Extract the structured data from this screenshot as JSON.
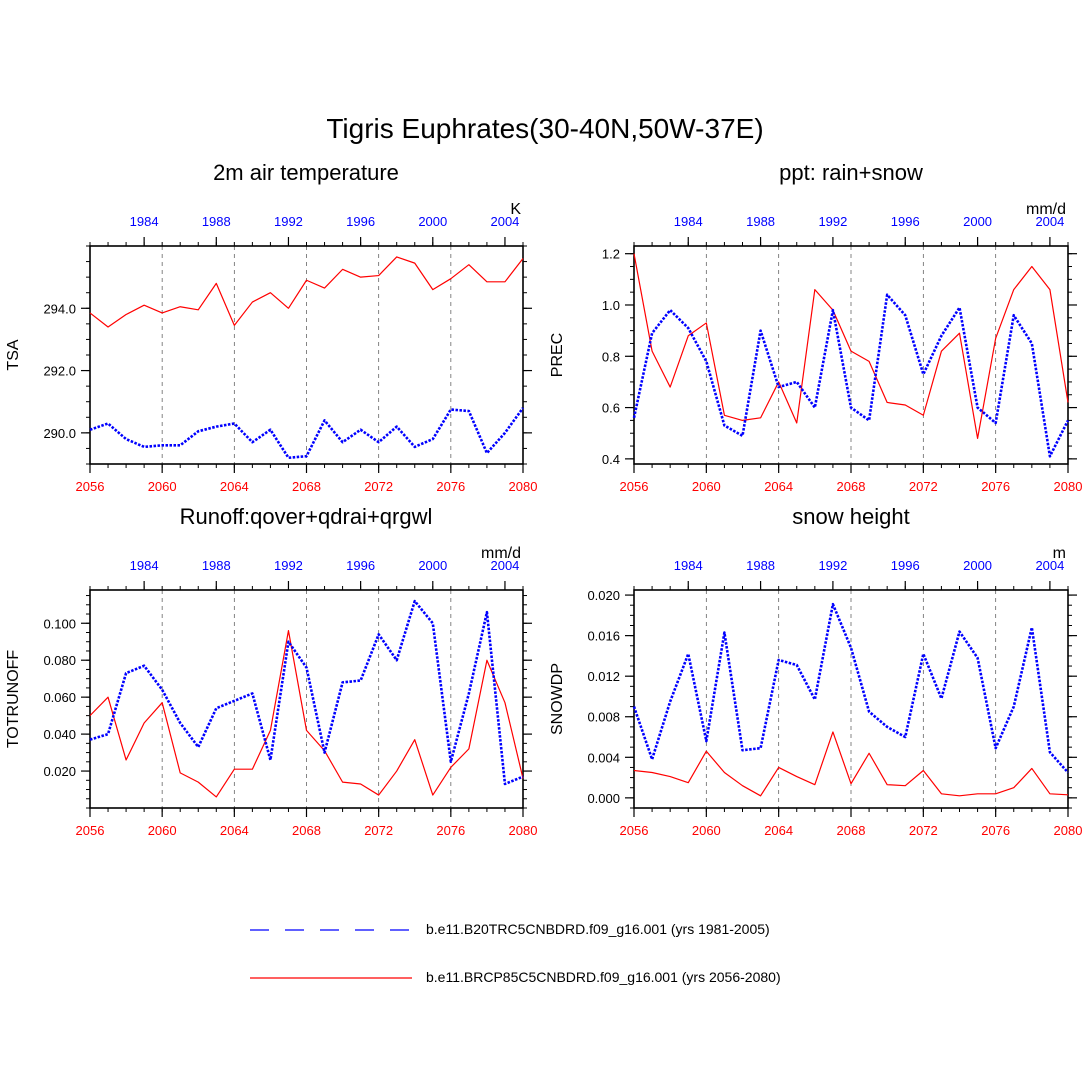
{
  "title": "Tigris Euphrates(30-40N,50W-37E)",
  "legend": [
    {
      "label": "b.e11.B20TRC5CNBDRD.f09_g16.001 (yrs 1981-2005)",
      "color": "#0000ff",
      "style": "dashed"
    },
    {
      "label": "b.e11.BRCP85C5CNBDRD.f09_g16.001 (yrs 2056-2080)",
      "color": "#ff0000",
      "style": "solid"
    }
  ],
  "colors": {
    "future": "#ff0000",
    "historical": "#0000ff",
    "axis": "#000000"
  },
  "chart_data": [
    {
      "type": "line",
      "title": "2m air temperature",
      "ylabel": "TSA",
      "units": "K",
      "ylim": [
        289,
        296.0
      ],
      "yticks": [
        290,
        292,
        294
      ],
      "yticklabels": [
        "290.0",
        "292.0",
        "294.0"
      ],
      "ydecimals": 1,
      "bottom_axis": {
        "range": [
          2056,
          2080
        ],
        "ticks": [
          "2056",
          "2060",
          "2064",
          "2068",
          "2072",
          "2076",
          "2080"
        ],
        "color": "#ff0000"
      },
      "top_axis": {
        "range": [
          1981,
          2005
        ],
        "ticks": [
          "1984",
          "1988",
          "1992",
          "1996",
          "2000",
          "2004"
        ],
        "color": "#0000ff"
      },
      "gridlines_x": [
        2060,
        2064,
        2068,
        2072,
        2076
      ],
      "series": [
        {
          "name": "b.e11.BRCP85C5CNBDRD.f09_g16.001 (yrs 2056-2080)",
          "color": "#ff0000",
          "style": "solid",
          "x": [
            2056,
            2057,
            2058,
            2059,
            2060,
            2061,
            2062,
            2063,
            2064,
            2065,
            2066,
            2067,
            2068,
            2069,
            2070,
            2071,
            2072,
            2073,
            2074,
            2075,
            2076,
            2077,
            2078,
            2079,
            2080
          ],
          "values": [
            293.85,
            293.4,
            293.8,
            294.1,
            293.85,
            294.05,
            293.95,
            294.8,
            293.45,
            294.2,
            294.5,
            294.0,
            294.9,
            294.65,
            295.25,
            295.0,
            295.05,
            295.65,
            295.45,
            294.6,
            294.95,
            295.4,
            294.85,
            294.85,
            295.6
          ]
        },
        {
          "name": "b.e11.B20TRC5CNBDRD.f09_g16.001 (yrs 1981-2005)",
          "color": "#0000ff",
          "style": "dotted",
          "x": [
            2056,
            2057,
            2058,
            2059,
            2060,
            2061,
            2062,
            2063,
            2064,
            2065,
            2066,
            2067,
            2068,
            2069,
            2070,
            2071,
            2072,
            2073,
            2074,
            2075,
            2076,
            2077,
            2078,
            2079,
            2080
          ],
          "values": [
            290.1,
            290.3,
            289.8,
            289.55,
            289.6,
            289.6,
            290.05,
            290.2,
            290.3,
            289.7,
            290.1,
            289.2,
            289.25,
            290.4,
            289.7,
            290.1,
            289.7,
            290.2,
            289.55,
            289.8,
            290.75,
            290.7,
            289.35,
            290.0,
            290.8
          ]
        }
      ]
    },
    {
      "type": "line",
      "title": "ppt: rain+snow",
      "ylabel": "PREC",
      "units": "mm/d",
      "ylim": [
        0.38,
        1.23
      ],
      "yticks": [
        0.4,
        0.6,
        0.8,
        1.0,
        1.2
      ],
      "yticklabels": [
        "0.4",
        "0.6",
        "0.8",
        "1.0",
        "1.2"
      ],
      "ydecimals": 1,
      "bottom_axis": {
        "range": [
          2056,
          2080
        ],
        "ticks": [
          "2056",
          "2060",
          "2064",
          "2068",
          "2072",
          "2076",
          "2080"
        ],
        "color": "#ff0000"
      },
      "top_axis": {
        "range": [
          1981,
          2005
        ],
        "ticks": [
          "1984",
          "1988",
          "1992",
          "1996",
          "2000",
          "2004"
        ],
        "color": "#0000ff"
      },
      "gridlines_x": [
        2060,
        2064,
        2068,
        2072,
        2076
      ],
      "series": [
        {
          "name": "b.e11.BRCP85C5CNBDRD.f09_g16.001 (yrs 2056-2080)",
          "color": "#ff0000",
          "style": "solid",
          "x": [
            2056,
            2057,
            2058,
            2059,
            2060,
            2061,
            2062,
            2063,
            2064,
            2065,
            2066,
            2067,
            2068,
            2069,
            2070,
            2071,
            2072,
            2073,
            2074,
            2075,
            2076,
            2077,
            2078,
            2079,
            2080
          ],
          "values": [
            1.2,
            0.82,
            0.68,
            0.88,
            0.93,
            0.57,
            0.55,
            0.56,
            0.7,
            0.54,
            1.06,
            0.98,
            0.82,
            0.78,
            0.62,
            0.61,
            0.57,
            0.82,
            0.89,
            0.48,
            0.87,
            1.06,
            1.15,
            1.06,
            0.62
          ]
        },
        {
          "name": "b.e11.B20TRC5CNBDRD.f09_g16.001 (yrs 1981-2005)",
          "color": "#0000ff",
          "style": "dotted",
          "x": [
            2056,
            2057,
            2058,
            2059,
            2060,
            2061,
            2062,
            2063,
            2064,
            2065,
            2066,
            2067,
            2068,
            2069,
            2070,
            2071,
            2072,
            2073,
            2074,
            2075,
            2076,
            2077,
            2078,
            2079,
            2080
          ],
          "values": [
            0.56,
            0.89,
            0.98,
            0.91,
            0.78,
            0.53,
            0.49,
            0.9,
            0.68,
            0.7,
            0.6,
            0.98,
            0.6,
            0.55,
            1.04,
            0.96,
            0.73,
            0.88,
            0.99,
            0.6,
            0.54,
            0.96,
            0.85,
            0.41,
            0.55
          ]
        }
      ]
    },
    {
      "type": "line",
      "title": "Runoff:qover+qdrai+qrgwl",
      "ylabel": "TOTRUNOFF",
      "units": "mm/d",
      "ylim": [
        0.0,
        0.118
      ],
      "yticks": [
        0.02,
        0.04,
        0.06,
        0.08,
        0.1
      ],
      "yticklabels": [
        "0.020",
        "0.040",
        "0.060",
        "0.080",
        "0.100"
      ],
      "ydecimals": 3,
      "bottom_axis": {
        "range": [
          2056,
          2080
        ],
        "ticks": [
          "2056",
          "2060",
          "2064",
          "2068",
          "2072",
          "2076",
          "2080"
        ],
        "color": "#ff0000"
      },
      "top_axis": {
        "range": [
          1981,
          2005
        ],
        "ticks": [
          "1984",
          "1988",
          "1992",
          "1996",
          "2000",
          "2004"
        ],
        "color": "#0000ff"
      },
      "gridlines_x": [
        2060,
        2064,
        2068,
        2072,
        2076
      ],
      "series": [
        {
          "name": "b.e11.BRCP85C5CNBDRD.f09_g16.001 (yrs 2056-2080)",
          "color": "#ff0000",
          "style": "solid",
          "x": [
            2056,
            2057,
            2058,
            2059,
            2060,
            2061,
            2062,
            2063,
            2064,
            2065,
            2066,
            2067,
            2068,
            2069,
            2070,
            2071,
            2072,
            2073,
            2074,
            2075,
            2076,
            2077,
            2078,
            2079,
            2080
          ],
          "values": [
            0.05,
            0.06,
            0.026,
            0.046,
            0.057,
            0.019,
            0.014,
            0.006,
            0.021,
            0.021,
            0.042,
            0.096,
            0.042,
            0.031,
            0.014,
            0.013,
            0.007,
            0.02,
            0.037,
            0.007,
            0.022,
            0.032,
            0.08,
            0.057,
            0.016
          ]
        },
        {
          "name": "b.e11.B20TRC5CNBDRD.f09_g16.001 (yrs 1981-2005)",
          "color": "#0000ff",
          "style": "dotted",
          "x": [
            2056,
            2057,
            2058,
            2059,
            2060,
            2061,
            2062,
            2063,
            2064,
            2065,
            2066,
            2067,
            2068,
            2069,
            2070,
            2071,
            2072,
            2073,
            2074,
            2075,
            2076,
            2077,
            2078,
            2079,
            2080
          ],
          "values": [
            0.037,
            0.04,
            0.073,
            0.077,
            0.064,
            0.046,
            0.033,
            0.054,
            0.058,
            0.062,
            0.026,
            0.09,
            0.076,
            0.03,
            0.068,
            0.069,
            0.094,
            0.08,
            0.112,
            0.1,
            0.025,
            0.062,
            0.106,
            0.013,
            0.017
          ]
        }
      ]
    },
    {
      "type": "line",
      "title": "snow height",
      "ylabel": "SNOWDP",
      "units": "m",
      "ylim": [
        -0.001,
        0.0205
      ],
      "yticks": [
        0.0,
        0.004,
        0.008,
        0.012,
        0.016,
        0.02
      ],
      "yticklabels": [
        "0.000",
        "0.004",
        "0.008",
        "0.012",
        "0.016",
        "0.020"
      ],
      "ydecimals": 3,
      "bottom_axis": {
        "range": [
          2056,
          2080
        ],
        "ticks": [
          "2056",
          "2060",
          "2064",
          "2068",
          "2072",
          "2076",
          "2080"
        ],
        "color": "#ff0000"
      },
      "top_axis": {
        "range": [
          1981,
          2005
        ],
        "ticks": [
          "1984",
          "1988",
          "1992",
          "1996",
          "2000",
          "2004"
        ],
        "color": "#0000ff"
      },
      "gridlines_x": [
        2060,
        2064,
        2068,
        2072,
        2076
      ],
      "series": [
        {
          "name": "b.e11.BRCP85C5CNBDRD.f09_g16.001 (yrs 2056-2080)",
          "color": "#ff0000",
          "style": "solid",
          "x": [
            2056,
            2057,
            2058,
            2059,
            2060,
            2061,
            2062,
            2063,
            2064,
            2065,
            2066,
            2067,
            2068,
            2069,
            2070,
            2071,
            2072,
            2073,
            2074,
            2075,
            2076,
            2077,
            2078,
            2079,
            2080
          ],
          "values": [
            0.0027,
            0.0025,
            0.0021,
            0.0015,
            0.0046,
            0.0025,
            0.0012,
            0.0002,
            0.003,
            0.0021,
            0.0013,
            0.0065,
            0.0014,
            0.0044,
            0.0013,
            0.0012,
            0.0027,
            0.0004,
            0.0002,
            0.0004,
            0.0004,
            0.001,
            0.0029,
            0.0004,
            0.0003
          ]
        },
        {
          "name": "b.e11.B20TRC5CNBDRD.f09_g16.001 (yrs 1981-2005)",
          "color": "#0000ff",
          "style": "dotted",
          "x": [
            2056,
            2057,
            2058,
            2059,
            2060,
            2061,
            2062,
            2063,
            2064,
            2065,
            2066,
            2067,
            2068,
            2069,
            2070,
            2071,
            2072,
            2073,
            2074,
            2075,
            2076,
            2077,
            2078,
            2079,
            2080
          ],
          "values": [
            0.009,
            0.0038,
            0.0095,
            0.0142,
            0.0056,
            0.0163,
            0.0047,
            0.0049,
            0.0136,
            0.0131,
            0.0097,
            0.0191,
            0.0148,
            0.0085,
            0.007,
            0.006,
            0.0142,
            0.0098,
            0.0164,
            0.0138,
            0.0049,
            0.009,
            0.0168,
            0.0045,
            0.0025
          ]
        }
      ]
    }
  ]
}
